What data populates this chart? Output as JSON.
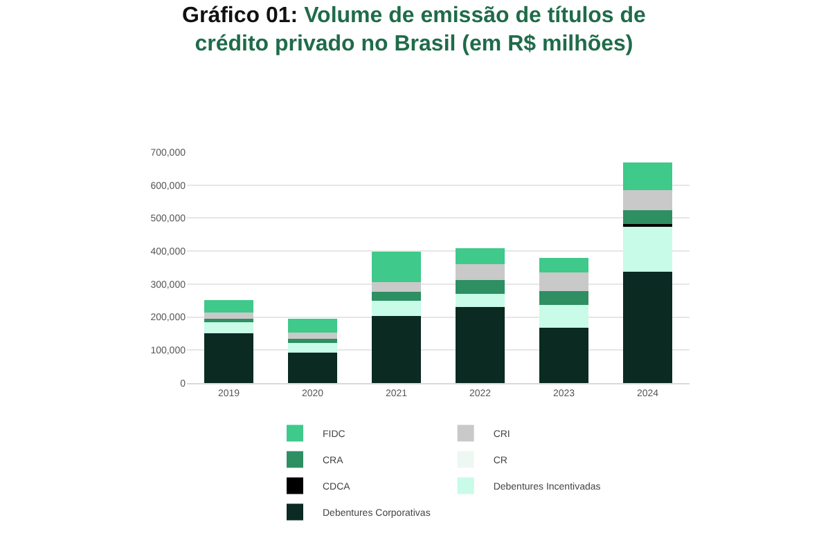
{
  "chart_data": {
    "type": "bar",
    "stacked": true,
    "title": "Gráfico 01: Volume de emissão de títulos de crédito privado no Brasil (em R$ milhões)",
    "categories": [
      "2019",
      "2020",
      "2021",
      "2022",
      "2023",
      "2024"
    ],
    "series": [
      {
        "name": "Debentures Corporativas",
        "color": "#0a2a22",
        "values": [
          150000,
          92000,
          203000,
          230000,
          167000,
          338000
        ]
      },
      {
        "name": "Debentures Incentivadas",
        "color": "#c8fbe8",
        "values": [
          34000,
          29000,
          47000,
          40000,
          69000,
          135000
        ]
      },
      {
        "name": "CDCA",
        "color": "#000000",
        "values": [
          0,
          0,
          0,
          0,
          0,
          10000
        ]
      },
      {
        "name": "CR",
        "color": "#eef7f2",
        "values": [
          0,
          0,
          0,
          0,
          0,
          0
        ]
      },
      {
        "name": "CRA",
        "color": "#2e8f62",
        "values": [
          11000,
          14000,
          26000,
          42000,
          42000,
          41000
        ]
      },
      {
        "name": "CRI",
        "color": "#c9c9c9",
        "values": [
          19000,
          17000,
          31000,
          49000,
          57000,
          61000
        ]
      },
      {
        "name": "FIDC",
        "color": "#3fc98a",
        "values": [
          37000,
          42000,
          92000,
          48000,
          44000,
          83000
        ]
      }
    ],
    "ylim": [
      0,
      700000
    ],
    "yticks": [
      0,
      {
        "value": 100000,
        "label": "100,000"
      },
      {
        "value": 200000,
        "label": "200,000"
      },
      {
        "value": 300000,
        "label": "300,000"
      },
      {
        "value": 400000,
        "label": "400,000"
      },
      {
        "value": 500000,
        "label": "500,000"
      },
      {
        "value": 600000,
        "label": "600,000"
      },
      {
        "value": 700000,
        "label": "700,000"
      }
    ],
    "grid": "y",
    "legend": "bottom"
  }
}
